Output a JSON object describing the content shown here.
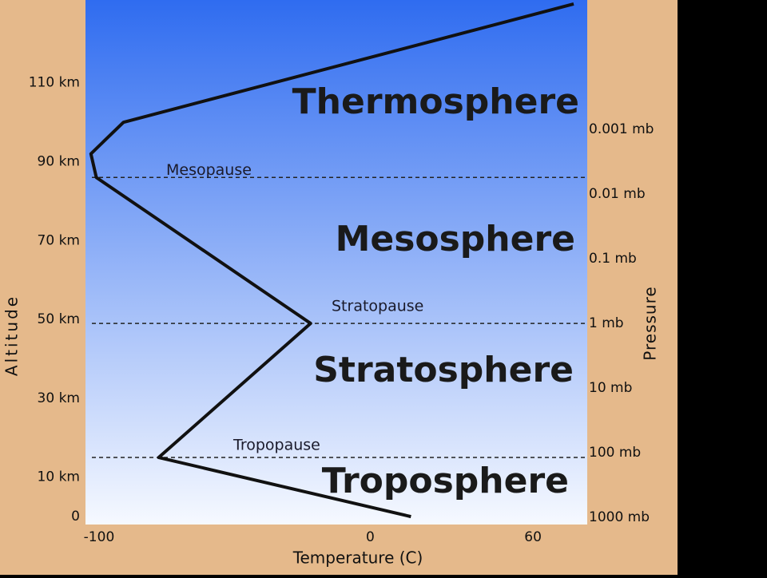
{
  "chart_data": {
    "type": "line",
    "x_label": "Temperature (C)",
    "y_label": "Altitude",
    "y2_label": "Pressure",
    "x": [
      15,
      -78,
      -22,
      -101,
      -103,
      -91,
      75
    ],
    "values": [
      0,
      15,
      49,
      86,
      92,
      100,
      130
    ],
    "color": "#111111",
    "xlim": [
      -105,
      80
    ],
    "xticks": [
      -100,
      0,
      60
    ],
    "ylim": [
      -2,
      131
    ],
    "yticks": [
      0,
      {
        "value": 10,
        "label": "10 km"
      },
      {
        "value": 30,
        "label": "30 km"
      },
      {
        "value": 50,
        "label": "50 km"
      },
      {
        "value": 70,
        "label": "70 km"
      },
      {
        "value": 90,
        "label": "90 km"
      },
      {
        "value": 110,
        "label": "110 km"
      }
    ],
    "y2lim": [
      1300,
      1e-05
    ],
    "y2_log_scale": true,
    "y2ticks": [
      {
        "value": 0.001,
        "label": "0.001 mb"
      },
      {
        "value": 0.01,
        "label": "0.01 mb"
      },
      {
        "value": 0.1,
        "label": "0.1 mb"
      },
      {
        "value": 1,
        "label": "1 mb"
      },
      {
        "value": 10,
        "label": "10 mb"
      },
      {
        "value": 100,
        "label": "100 mb"
      },
      {
        "value": 1000,
        "label": "1000 mb"
      }
    ],
    "boundaries": [
      {
        "text": "Mesopause",
        "y": 86
      },
      {
        "text": "Stratopause",
        "y": 49
      },
      {
        "text": "Tropopause",
        "y": 15
      }
    ],
    "layers": [
      "Thermosphere",
      "Mesosphere",
      "Stratosphere",
      "Troposphere"
    ]
  }
}
